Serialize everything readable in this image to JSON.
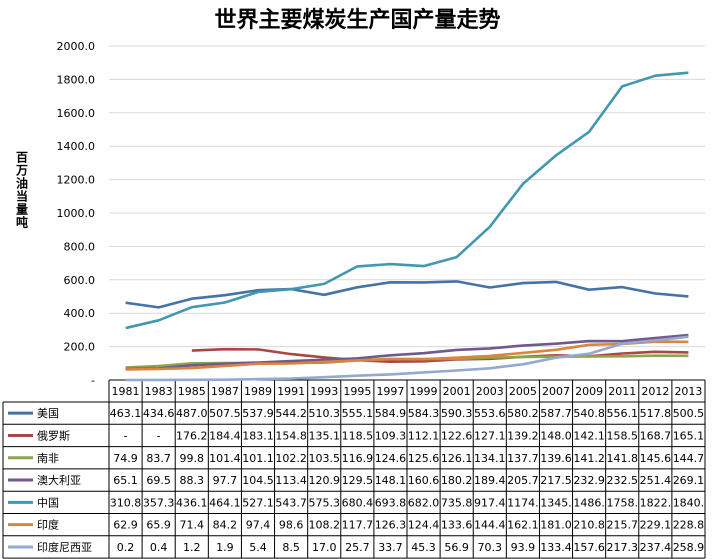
{
  "chart_data": {
    "type": "line",
    "title": "世界主要煤炭生产国产量走势",
    "ylabel": "百万油当量吨",
    "ylim": [
      0,
      2000
    ],
    "yticks": [
      "-",
      "200.0",
      "400.0",
      "600.0",
      "800.0",
      "1000.0",
      "1200.0",
      "1400.0",
      "1600.0",
      "1800.0",
      "2000.0"
    ],
    "grid": true,
    "legend": "data-table-left",
    "categories": [
      "1981",
      "1983",
      "1985",
      "1987",
      "1989",
      "1991",
      "1993",
      "1995",
      "1997",
      "1999",
      "2001",
      "2003",
      "2005",
      "2007",
      "2009",
      "2011",
      "2012",
      "2013"
    ],
    "series": [
      {
        "name": "美国",
        "color": "#4572A7",
        "values": [
          463.1,
          434.6,
          487.0,
          507.5,
          537.9,
          544.2,
          510.3,
          555.1,
          584.9,
          584.3,
          590.3,
          553.6,
          580.2,
          587.7,
          540.8,
          556.1,
          517.8,
          500.5
        ],
        "labels": [
          "463.1",
          "434.6",
          "487.0",
          "507.5",
          "537.9",
          "544.2",
          "510.3",
          "555.1",
          "584.9",
          "584.3",
          "590.3",
          "553.6",
          "580.2",
          "587.7",
          "540.8",
          "556.1",
          "517.8",
          "500.5"
        ]
      },
      {
        "name": "俄罗斯",
        "color": "#AA4643",
        "values": [
          null,
          null,
          176.2,
          184.4,
          183.1,
          154.8,
          135.1,
          118.5,
          109.3,
          112.1,
          122.6,
          127.1,
          139.2,
          148.0,
          142.1,
          158.5,
          168.7,
          165.1
        ],
        "labels": [
          "-",
          "-",
          "176.2",
          "184.4",
          "183.1",
          "154.8",
          "135.1",
          "118.5",
          "109.3",
          "112.1",
          "122.6",
          "127.1",
          "139.2",
          "148.0",
          "142.1",
          "158.5",
          "168.7",
          "165.1"
        ]
      },
      {
        "name": "南非",
        "color": "#89A54E",
        "values": [
          74.9,
          83.7,
          99.8,
          101.4,
          101.1,
          102.2,
          103.5,
          116.9,
          124.6,
          125.6,
          126.1,
          134.1,
          137.7,
          139.6,
          141.2,
          141.8,
          145.6,
          144.7
        ],
        "labels": [
          "74.9",
          "83.7",
          "99.8",
          "101.4",
          "101.1",
          "102.2",
          "103.5",
          "116.9",
          "124.6",
          "125.6",
          "126.1",
          "134.1",
          "137.7",
          "139.6",
          "141.2",
          "141.8",
          "145.6",
          "144.7"
        ]
      },
      {
        "name": "澳大利亚",
        "color": "#71588F",
        "values": [
          65.1,
          69.5,
          88.3,
          97.7,
          104.5,
          113.4,
          120.9,
          129.5,
          148.1,
          160.6,
          180.2,
          189.4,
          205.7,
          217.5,
          232.9,
          232.5,
          251.4,
          269.1
        ],
        "labels": [
          "65.1",
          "69.5",
          "88.3",
          "97.7",
          "104.5",
          "113.4",
          "120.9",
          "129.5",
          "148.1",
          "160.6",
          "180.2",
          "189.4",
          "205.7",
          "217.5",
          "232.9",
          "232.5",
          "251.4",
          "269.1"
        ]
      },
      {
        "name": "中国",
        "color": "#4198AF",
        "values": [
          310.8,
          357.3,
          436.1,
          464.1,
          527.1,
          543.7,
          575.3,
          680.4,
          693.8,
          682.0,
          735.8,
          917.4,
          1174,
          1345,
          1486,
          1758,
          1822,
          1840
        ],
        "labels": [
          "310.8",
          "357.3",
          "436.1",
          "464.1",
          "527.1",
          "543.7",
          "575.3",
          "680.4",
          "693.8",
          "682.0",
          "735.8",
          "917.4",
          "1174.",
          "1345.",
          "1486.",
          "1758.",
          "1822.",
          "1840."
        ]
      },
      {
        "name": "印度",
        "color": "#DB843D",
        "values": [
          62.9,
          65.9,
          71.4,
          84.2,
          97.4,
          98.6,
          108.2,
          117.7,
          126.3,
          124.4,
          133.6,
          144.4,
          162.1,
          181.0,
          210.8,
          215.7,
          229.1,
          228.8
        ],
        "labels": [
          "62.9",
          "65.9",
          "71.4",
          "84.2",
          "97.4",
          "98.6",
          "108.2",
          "117.7",
          "126.3",
          "124.4",
          "133.6",
          "144.4",
          "162.1",
          "181.0",
          "210.8",
          "215.7",
          "229.1",
          "228.8"
        ]
      },
      {
        "name": "印度尼西亚",
        "color": "#93A9CF",
        "values": [
          0.2,
          0.4,
          1.2,
          1.9,
          5.4,
          8.5,
          17.0,
          25.7,
          33.7,
          45.3,
          56.9,
          70.3,
          93.9,
          133.4,
          157.6,
          217.3,
          237.4,
          258.9
        ],
        "labels": [
          "0.2",
          "0.4",
          "1.2",
          "1.9",
          "5.4",
          "8.5",
          "17.0",
          "25.7",
          "33.7",
          "45.3",
          "56.9",
          "70.3",
          "93.9",
          "133.4",
          "157.6",
          "217.3",
          "237.4",
          "258.9"
        ]
      }
    ]
  }
}
